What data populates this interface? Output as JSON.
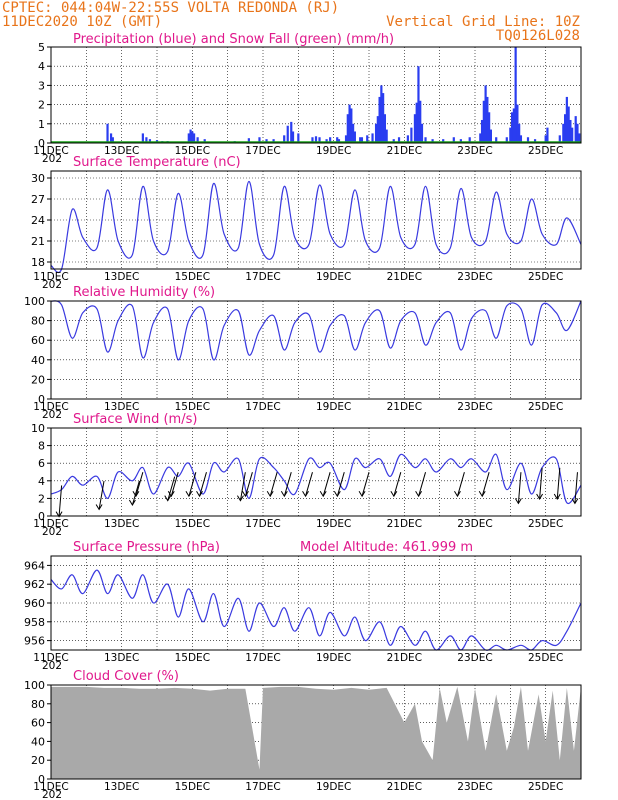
{
  "header": {
    "line1": "CPTEC:   044:04W-22:55S   VOLTA REDONDA (RJ)",
    "line2_left": "11DEC2020 10Z (GMT)",
    "line2_right": "Vertical Grid Line: 10Z",
    "line3_right": "TQ0126L028"
  },
  "colors": {
    "header": "#e8741a",
    "title": "#e0188c",
    "precip": "#2a3df0",
    "snow": "#16a016",
    "line": "#3a3ae0",
    "cloud": "#a9a9a9",
    "wind_arrow": "#000000"
  },
  "x_axis": {
    "labels": [
      "11DEC",
      "13DEC",
      "15DEC",
      "17DEC",
      "19DEC",
      "21DEC",
      "23DEC",
      "25DEC"
    ],
    "label_days": [
      0,
      2,
      4,
      6,
      8,
      10,
      12,
      14
    ],
    "year_fragment": "202",
    "range_days": [
      0,
      15
    ]
  },
  "chart_data": [
    {
      "id": "precip",
      "type": "bar",
      "title": "Precipitation (blue) and Snow Fall (green) (mm/h)",
      "ylim": [
        0,
        5
      ],
      "yticks": [
        0,
        1,
        2,
        3,
        4,
        5
      ],
      "bars": [
        [
          1.6,
          1.0
        ],
        [
          1.7,
          0.5
        ],
        [
          1.75,
          0.3
        ],
        [
          2.6,
          0.5
        ],
        [
          2.7,
          0.3
        ],
        [
          2.8,
          0.2
        ],
        [
          3.0,
          0.15
        ],
        [
          3.15,
          0.1
        ],
        [
          3.3,
          0.1
        ],
        [
          3.9,
          0.5
        ],
        [
          3.95,
          0.7
        ],
        [
          4.0,
          0.6
        ],
        [
          4.05,
          0.5
        ],
        [
          4.15,
          0.3
        ],
        [
          4.35,
          0.2
        ],
        [
          5.2,
          0.1
        ],
        [
          5.6,
          0.25
        ],
        [
          5.9,
          0.3
        ],
        [
          6.1,
          0.2
        ],
        [
          6.3,
          0.2
        ],
        [
          6.6,
          0.4
        ],
        [
          6.7,
          0.9
        ],
        [
          6.8,
          1.1
        ],
        [
          6.85,
          0.6
        ],
        [
          7.0,
          0.5
        ],
        [
          7.4,
          0.3
        ],
        [
          7.8,
          0.2
        ],
        [
          7.5,
          0.35
        ],
        [
          7.6,
          0.3
        ],
        [
          7.9,
          0.3
        ],
        [
          8.1,
          0.3
        ],
        [
          8.15,
          0.2
        ],
        [
          8.35,
          0.4
        ],
        [
          8.4,
          1.5
        ],
        [
          8.45,
          2.0
        ],
        [
          8.5,
          1.8
        ],
        [
          8.55,
          1.0
        ],
        [
          8.6,
          0.6
        ],
        [
          8.75,
          0.3
        ],
        [
          8.8,
          0.3
        ],
        [
          8.95,
          0.4
        ],
        [
          9.1,
          0.5
        ],
        [
          9.2,
          1.0
        ],
        [
          9.25,
          1.4
        ],
        [
          9.3,
          2.4
        ],
        [
          9.35,
          3.0
        ],
        [
          9.4,
          2.6
        ],
        [
          9.45,
          1.5
        ],
        [
          9.5,
          0.7
        ],
        [
          9.7,
          0.2
        ],
        [
          9.85,
          0.3
        ],
        [
          10.1,
          0.4
        ],
        [
          10.2,
          0.8
        ],
        [
          10.3,
          1.5
        ],
        [
          10.35,
          2.1
        ],
        [
          10.4,
          4.0
        ],
        [
          10.45,
          2.2
        ],
        [
          10.5,
          1.0
        ],
        [
          10.6,
          0.3
        ],
        [
          10.8,
          0.2
        ],
        [
          11.1,
          0.2
        ],
        [
          11.4,
          0.3
        ],
        [
          11.6,
          0.2
        ],
        [
          11.85,
          0.3
        ],
        [
          12.15,
          0.5
        ],
        [
          12.2,
          1.2
        ],
        [
          12.25,
          2.2
        ],
        [
          12.3,
          3.0
        ],
        [
          12.35,
          2.4
        ],
        [
          12.4,
          1.6
        ],
        [
          12.45,
          0.7
        ],
        [
          12.6,
          0.3
        ],
        [
          12.9,
          0.3
        ],
        [
          13.0,
          0.8
        ],
        [
          13.05,
          1.6
        ],
        [
          13.1,
          1.8
        ],
        [
          13.15,
          5.0
        ],
        [
          13.2,
          2.0
        ],
        [
          13.25,
          1.0
        ],
        [
          13.3,
          0.4
        ],
        [
          13.5,
          0.3
        ],
        [
          13.7,
          0.2
        ],
        [
          14.0,
          0.4
        ],
        [
          14.05,
          0.8
        ],
        [
          14.4,
          0.4
        ],
        [
          14.5,
          1.0
        ],
        [
          14.55,
          1.5
        ],
        [
          14.6,
          2.4
        ],
        [
          14.65,
          1.9
        ],
        [
          14.7,
          1.2
        ],
        [
          14.75,
          0.8
        ],
        [
          14.85,
          1.4
        ],
        [
          14.9,
          1.0
        ],
        [
          14.95,
          0.5
        ]
      ],
      "snow": 0
    },
    {
      "id": "temperature",
      "type": "line",
      "title": "Surface Temperature (nC)",
      "ylim": [
        17,
        31
      ],
      "yticks": [
        18,
        21,
        24,
        27,
        30
      ],
      "x": [
        0,
        0.3,
        0.6,
        0.9,
        1.3,
        1.6,
        1.9,
        2.3,
        2.6,
        2.9,
        3.3,
        3.6,
        3.9,
        4.3,
        4.6,
        4.9,
        5.3,
        5.6,
        5.9,
        6.3,
        6.6,
        6.9,
        7.3,
        7.6,
        7.9,
        8.3,
        8.6,
        8.9,
        9.3,
        9.6,
        9.9,
        10.3,
        10.6,
        10.9,
        11.3,
        11.6,
        11.9,
        12.3,
        12.6,
        12.9,
        13.3,
        13.6,
        13.9,
        14.3,
        14.6,
        15.0
      ],
      "y": [
        17.5,
        17.0,
        25.5,
        21.5,
        20.0,
        28.3,
        21.0,
        19.0,
        28.8,
        21.0,
        19.5,
        27.8,
        21.0,
        19.0,
        29.2,
        22.0,
        20.0,
        29.5,
        20.5,
        19.0,
        28.8,
        21.5,
        20.5,
        29.0,
        22.0,
        20.5,
        28.3,
        21.0,
        20.0,
        28.8,
        21.5,
        20.5,
        28.8,
        20.5,
        20.0,
        28.5,
        21.5,
        21.0,
        28.0,
        22.0,
        21.0,
        27.0,
        22.0,
        20.5,
        24.3,
        20.5
      ],
      "ylabel": ""
    },
    {
      "id": "humidity",
      "type": "line",
      "title": "Relative Humidity (%)",
      "ylim": [
        0,
        100
      ],
      "yticks": [
        0,
        20,
        40,
        60,
        80,
        100
      ],
      "x": [
        0,
        0.3,
        0.6,
        0.9,
        1.3,
        1.6,
        1.9,
        2.3,
        2.6,
        2.9,
        3.3,
        3.6,
        3.9,
        4.3,
        4.6,
        4.9,
        5.3,
        5.6,
        5.9,
        6.3,
        6.6,
        6.9,
        7.3,
        7.6,
        7.9,
        8.3,
        8.6,
        8.9,
        9.3,
        9.6,
        9.9,
        10.3,
        10.6,
        10.9,
        11.3,
        11.6,
        11.9,
        12.3,
        12.6,
        12.9,
        13.3,
        13.6,
        13.9,
        14.3,
        14.6,
        15.0
      ],
      "y": [
        100,
        96,
        62,
        88,
        92,
        48,
        80,
        95,
        42,
        78,
        92,
        40,
        80,
        92,
        40,
        75,
        90,
        45,
        70,
        85,
        50,
        78,
        86,
        48,
        75,
        85,
        50,
        78,
        90,
        52,
        80,
        88,
        55,
        78,
        88,
        50,
        82,
        90,
        62,
        95,
        92,
        55,
        96,
        88,
        70,
        100
      ]
    },
    {
      "id": "wind",
      "type": "line",
      "title": "Surface Wind (m/s)",
      "ylim": [
        0,
        10
      ],
      "yticks": [
        0,
        2,
        4,
        6,
        8,
        10
      ],
      "x": [
        0,
        0.3,
        0.6,
        0.9,
        1.3,
        1.6,
        1.9,
        2.3,
        2.6,
        2.9,
        3.3,
        3.6,
        3.9,
        4.3,
        4.6,
        4.9,
        5.3,
        5.6,
        5.9,
        6.3,
        6.6,
        6.9,
        7.3,
        7.6,
        7.9,
        8.3,
        8.6,
        8.9,
        9.3,
        9.6,
        9.9,
        10.3,
        10.6,
        10.9,
        11.3,
        11.6,
        11.9,
        12.3,
        12.6,
        12.9,
        13.3,
        13.6,
        13.9,
        14.3,
        14.6,
        15.0
      ],
      "y": [
        2.5,
        3.0,
        4.5,
        3.5,
        4.5,
        2.0,
        5.0,
        4.0,
        5.5,
        2.5,
        5.5,
        4.5,
        6.0,
        2.5,
        6.0,
        5.0,
        6.5,
        2.0,
        6.5,
        5.5,
        4.0,
        2.5,
        6.5,
        5.5,
        6.0,
        3.0,
        6.5,
        5.5,
        6.5,
        4.5,
        7.0,
        5.5,
        6.5,
        5.0,
        6.5,
        5.5,
        6.5,
        5.0,
        7.0,
        3.0,
        6.0,
        2.5,
        5.5,
        6.5,
        1.5,
        3.5
      ],
      "arrows": [
        [
          0.3,
          3,
          8
        ],
        [
          1.5,
          3.5,
          10
        ],
        [
          2.5,
          3.5,
          12
        ],
        [
          2.6,
          4.5,
          12
        ],
        [
          3.5,
          4,
          12
        ],
        [
          3.6,
          4.5,
          12
        ],
        [
          4.1,
          4.5,
          12
        ],
        [
          4.4,
          4.5,
          12
        ],
        [
          5.5,
          4.5,
          10
        ],
        [
          5.7,
          4.5,
          12
        ],
        [
          6.4,
          4.5,
          12
        ],
        [
          6.8,
          4.5,
          12
        ],
        [
          7.4,
          4.5,
          12
        ],
        [
          7.9,
          4.5,
          12
        ],
        [
          8.3,
          4.5,
          12
        ],
        [
          9.0,
          4.5,
          12
        ],
        [
          9.9,
          4.5,
          12
        ],
        [
          10.6,
          4.5,
          12
        ],
        [
          11.7,
          4.5,
          12
        ],
        [
          12.4,
          4.5,
          12
        ],
        [
          13.3,
          4.5,
          8
        ],
        [
          13.9,
          5,
          8
        ],
        [
          14.4,
          5,
          8
        ],
        [
          14.9,
          4.5,
          8
        ]
      ]
    },
    {
      "id": "pressure",
      "type": "line",
      "title": "Surface Pressure (hPa)",
      "annotation": "Model Altitude: 461.999 m",
      "ylim": [
        955,
        965
      ],
      "yticks": [
        956,
        958,
        960,
        962,
        964
      ],
      "x": [
        0,
        0.3,
        0.6,
        0.9,
        1.3,
        1.6,
        1.9,
        2.3,
        2.6,
        2.9,
        3.3,
        3.6,
        3.9,
        4.3,
        4.6,
        4.9,
        5.3,
        5.6,
        5.9,
        6.3,
        6.6,
        6.9,
        7.3,
        7.6,
        7.9,
        8.3,
        8.6,
        8.9,
        9.3,
        9.6,
        9.9,
        10.3,
        10.6,
        10.9,
        11.3,
        11.6,
        11.9,
        12.3,
        12.6,
        12.9,
        13.3,
        13.6,
        13.9,
        14.3,
        14.6,
        15.0
      ],
      "y": [
        962.5,
        961.5,
        963.0,
        961.0,
        963.5,
        961.0,
        963.0,
        960.5,
        963.0,
        960.0,
        962.0,
        958.5,
        961.5,
        958.0,
        961.0,
        957.5,
        960.5,
        957.0,
        960.0,
        957.5,
        959.5,
        957.0,
        959.5,
        956.5,
        959.0,
        956.5,
        958.5,
        956.0,
        958.0,
        955.5,
        957.5,
        955.5,
        957.0,
        955.0,
        956.5,
        955.0,
        956.5,
        955.0,
        955.5,
        954.8,
        955.5,
        955.0,
        956.0,
        955.5,
        957.0,
        960.0
      ]
    },
    {
      "id": "cloud",
      "type": "area",
      "title": "Cloud Cover (%)",
      "ylim": [
        0,
        100
      ],
      "yticks": [
        0,
        20,
        40,
        60,
        80,
        100
      ],
      "x": [
        0,
        0.5,
        1.0,
        1.5,
        2.0,
        2.5,
        3.0,
        3.5,
        4.0,
        4.5,
        5.0,
        5.5,
        5.9,
        6.0,
        6.5,
        7.0,
        7.5,
        8.0,
        8.5,
        9.0,
        9.5,
        10.0,
        10.3,
        10.5,
        10.8,
        11.0,
        11.2,
        11.5,
        11.8,
        12.0,
        12.3,
        12.6,
        12.9,
        13.1,
        13.3,
        13.5,
        13.8,
        14.0,
        14.2,
        14.4,
        14.6,
        14.8,
        15.0
      ],
      "y": [
        98,
        98,
        98,
        97,
        97,
        96,
        96,
        97,
        96,
        94,
        96,
        96,
        10,
        97,
        98,
        98,
        96,
        95,
        97,
        95,
        97,
        60,
        80,
        40,
        20,
        97,
        60,
        98,
        40,
        96,
        30,
        90,
        30,
        55,
        98,
        30,
        90,
        40,
        94,
        20,
        97,
        30,
        98
      ]
    }
  ]
}
